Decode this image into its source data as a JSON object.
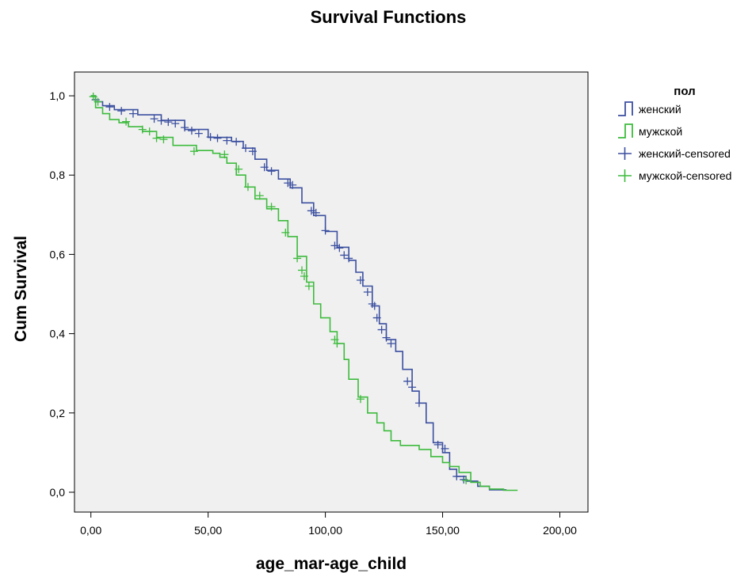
{
  "chart_data": {
    "type": "line",
    "title": "Survival Functions",
    "xlabel": "age_mar-age_child",
    "ylabel": "Cum Survival",
    "xlim": [
      -7,
      212
    ],
    "ylim": [
      -0.05,
      1.06
    ],
    "x_ticks": [
      0,
      50,
      100,
      150,
      200
    ],
    "x_tick_labels": [
      "0,00",
      "50,00",
      "100,00",
      "150,00",
      "200,00"
    ],
    "y_ticks": [
      0,
      0.2,
      0.4,
      0.6,
      0.8,
      1.0
    ],
    "y_tick_labels": [
      "0,0",
      "0,2",
      "0,4",
      "0,6",
      "0,8",
      "1,0"
    ],
    "grid": false,
    "plot_background": "#f0f0f0",
    "legend": {
      "position": "right",
      "title": "пол",
      "entries": [
        {
          "label": "женский",
          "kind": "step",
          "color": "#3b4fa0"
        },
        {
          "label": "мужской",
          "kind": "step",
          "color": "#3dbb3d"
        },
        {
          "label": "женский-censored",
          "kind": "censor",
          "color": "#3b4fa0"
        },
        {
          "label": "мужской-censored",
          "kind": "censor",
          "color": "#3dbb3d"
        }
      ]
    },
    "series": [
      {
        "name": "женский",
        "color": "#3b4fa0",
        "points": [
          [
            0,
            1.0
          ],
          [
            2,
            0.985
          ],
          [
            5,
            0.975
          ],
          [
            10,
            0.965
          ],
          [
            20,
            0.952
          ],
          [
            30,
            0.938
          ],
          [
            40,
            0.915
          ],
          [
            50,
            0.895
          ],
          [
            60,
            0.885
          ],
          [
            65,
            0.868
          ],
          [
            70,
            0.84
          ],
          [
            75,
            0.812
          ],
          [
            80,
            0.79
          ],
          [
            85,
            0.768
          ],
          [
            90,
            0.73
          ],
          [
            95,
            0.698
          ],
          [
            100,
            0.658
          ],
          [
            105,
            0.618
          ],
          [
            110,
            0.585
          ],
          [
            113,
            0.555
          ],
          [
            116,
            0.52
          ],
          [
            120,
            0.47
          ],
          [
            123,
            0.425
          ],
          [
            126,
            0.385
          ],
          [
            130,
            0.355
          ],
          [
            133,
            0.31
          ],
          [
            137,
            0.255
          ],
          [
            140,
            0.225
          ],
          [
            143,
            0.175
          ],
          [
            146,
            0.125
          ],
          [
            150,
            0.1
          ],
          [
            153,
            0.058
          ],
          [
            156,
            0.04
          ],
          [
            160,
            0.028
          ],
          [
            165,
            0.015
          ],
          [
            170,
            0.006
          ],
          [
            177,
            0.004
          ]
        ],
        "censored": [
          [
            2,
            0.99
          ],
          [
            8,
            0.972
          ],
          [
            13,
            0.962
          ],
          [
            18,
            0.955
          ],
          [
            27,
            0.942
          ],
          [
            30,
            0.937
          ],
          [
            33,
            0.934
          ],
          [
            36,
            0.93
          ],
          [
            40,
            0.92
          ],
          [
            43,
            0.912
          ],
          [
            46,
            0.905
          ],
          [
            51,
            0.896
          ],
          [
            54,
            0.893
          ],
          [
            58,
            0.887
          ],
          [
            62,
            0.884
          ],
          [
            66,
            0.868
          ],
          [
            69,
            0.86
          ],
          [
            74,
            0.82
          ],
          [
            77,
            0.81
          ],
          [
            84,
            0.78
          ],
          [
            86,
            0.775
          ],
          [
            94,
            0.71
          ],
          [
            96,
            0.705
          ],
          [
            100,
            0.66
          ],
          [
            104,
            0.622
          ],
          [
            106,
            0.616
          ],
          [
            108,
            0.598
          ],
          [
            110,
            0.59
          ],
          [
            115,
            0.535
          ],
          [
            118,
            0.505
          ],
          [
            120,
            0.475
          ],
          [
            121,
            0.47
          ],
          [
            122,
            0.44
          ],
          [
            124,
            0.41
          ],
          [
            126,
            0.39
          ],
          [
            128,
            0.375
          ],
          [
            135,
            0.28
          ],
          [
            137,
            0.265
          ],
          [
            140,
            0.225
          ],
          [
            148,
            0.12
          ],
          [
            151,
            0.11
          ],
          [
            156,
            0.04
          ],
          [
            159,
            0.032
          ]
        ]
      },
      {
        "name": "мужской",
        "color": "#3dbb3d",
        "points": [
          [
            0,
            1.0
          ],
          [
            2,
            0.97
          ],
          [
            5,
            0.955
          ],
          [
            8,
            0.94
          ],
          [
            12,
            0.932
          ],
          [
            16,
            0.922
          ],
          [
            22,
            0.91
          ],
          [
            28,
            0.895
          ],
          [
            35,
            0.875
          ],
          [
            45,
            0.862
          ],
          [
            52,
            0.855
          ],
          [
            55,
            0.845
          ],
          [
            58,
            0.83
          ],
          [
            62,
            0.8
          ],
          [
            66,
            0.77
          ],
          [
            70,
            0.74
          ],
          [
            75,
            0.715
          ],
          [
            80,
            0.685
          ],
          [
            84,
            0.645
          ],
          [
            88,
            0.595
          ],
          [
            92,
            0.53
          ],
          [
            95,
            0.475
          ],
          [
            98,
            0.44
          ],
          [
            102,
            0.405
          ],
          [
            105,
            0.375
          ],
          [
            108,
            0.335
          ],
          [
            110,
            0.285
          ],
          [
            114,
            0.24
          ],
          [
            118,
            0.2
          ],
          [
            122,
            0.175
          ],
          [
            125,
            0.155
          ],
          [
            128,
            0.13
          ],
          [
            132,
            0.118
          ],
          [
            140,
            0.108
          ],
          [
            145,
            0.09
          ],
          [
            150,
            0.075
          ],
          [
            153,
            0.065
          ],
          [
            157,
            0.05
          ],
          [
            162,
            0.025
          ],
          [
            166,
            0.015
          ],
          [
            170,
            0.008
          ],
          [
            176,
            0.005
          ],
          [
            182,
            0.005
          ]
        ],
        "censored": [
          [
            1,
            0.998
          ],
          [
            3,
            0.985
          ],
          [
            15,
            0.935
          ],
          [
            22,
            0.915
          ],
          [
            25,
            0.91
          ],
          [
            28,
            0.893
          ],
          [
            31,
            0.89
          ],
          [
            44,
            0.86
          ],
          [
            57,
            0.852
          ],
          [
            63,
            0.815
          ],
          [
            67,
            0.77
          ],
          [
            72,
            0.748
          ],
          [
            77,
            0.72
          ],
          [
            83,
            0.655
          ],
          [
            88,
            0.59
          ],
          [
            90,
            0.56
          ],
          [
            91,
            0.545
          ],
          [
            93,
            0.52
          ],
          [
            104,
            0.385
          ],
          [
            105,
            0.375
          ],
          [
            115,
            0.235
          ],
          [
            160,
            0.03
          ]
        ]
      }
    ]
  }
}
